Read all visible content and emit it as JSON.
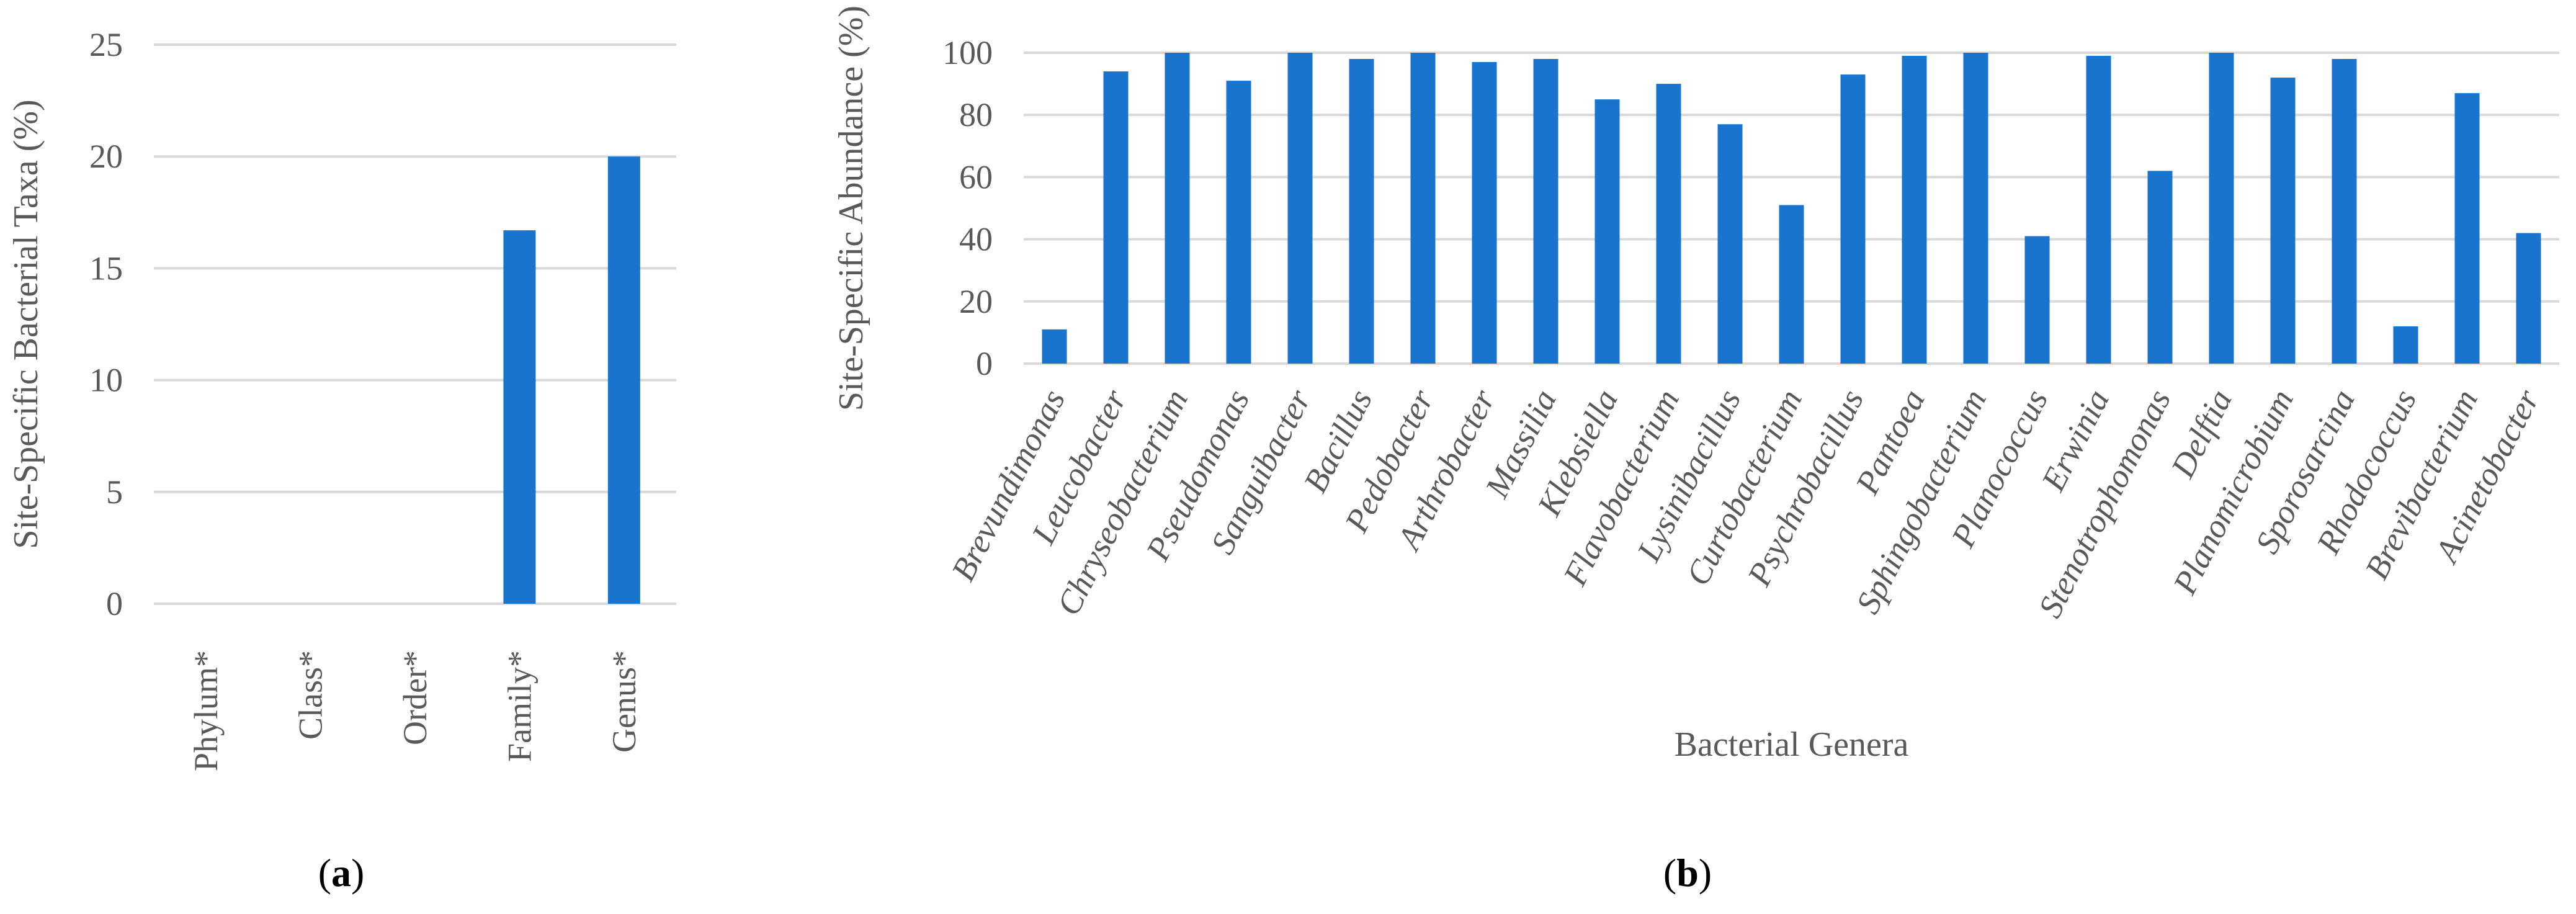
{
  "chart_data": [
    {
      "type": "bar",
      "title": "",
      "panel_label": "(a)",
      "categories": [
        "Phylum*",
        "Class*",
        "Order*",
        "Family*",
        "Genus*"
      ],
      "values": [
        0,
        0,
        0,
        16.7,
        20
      ],
      "xlabel": "",
      "ylabel": "Site-Specific Bacterial Taxa (%)",
      "ylim": [
        0,
        25
      ],
      "yticks": [
        0,
        5,
        10,
        15,
        20,
        25
      ],
      "grid": true,
      "color": "#1874cd"
    },
    {
      "type": "bar",
      "title": "",
      "panel_label": "(b)",
      "categories": [
        "Brevundimonas",
        "Leucobacter",
        "Chryseobacterium",
        "Pseudomonas",
        "Sanguibacter",
        "Bacillus",
        "Pedobacter",
        "Arthrobacter",
        "Massilia",
        "Klebsiella",
        "Flavobacterium",
        "Lysinibacillus",
        "Curtobacterium",
        "Psychrobacillus",
        "Pantoea",
        "Sphingobacterium",
        "Planococcus",
        "Erwinia",
        "Stenotrophomonas",
        "Delftia",
        "Planomicrobium",
        "Sporosarcina",
        "Rhodococcus",
        "Brevibacterium",
        "Acinetobacter"
      ],
      "values": [
        11,
        94,
        100,
        91,
        100,
        98,
        100,
        97,
        98,
        85,
        90,
        77,
        51,
        93,
        99,
        100,
        41,
        99,
        62,
        100,
        92,
        98,
        12,
        87,
        42
      ],
      "xlabel": "Bacterial Genera",
      "ylabel": "Site-Specific Abundance (%)",
      "ylim": [
        0,
        100
      ],
      "yticks": [
        0,
        20,
        40,
        60,
        80,
        100
      ],
      "grid": true,
      "color": "#1874cd"
    }
  ]
}
